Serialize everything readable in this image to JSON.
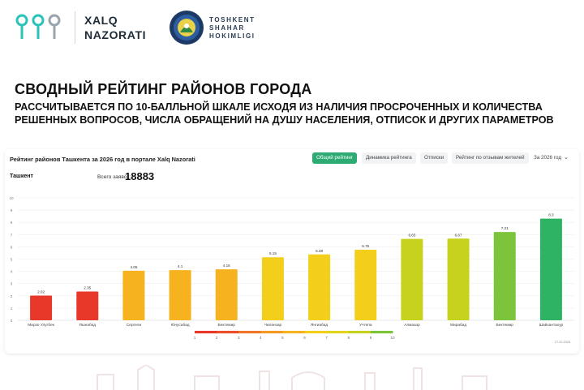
{
  "brand": {
    "line1": "XALQ",
    "line2": "NAZORATI"
  },
  "city": {
    "line1": "TOSHKENT",
    "line2": "SHAHAR",
    "line3": "HOKIMLIGI"
  },
  "heading": {
    "title": "СВОДНЫЙ РЕЙТИНГ РАЙОНОВ ГОРОДА",
    "subtitle": "РАССЧИТЫВАЕТСЯ ПО 10-БАЛЛЬНОЙ ШКАЛЕ ИСХОДЯ ИЗ НАЛИЧИЯ ПРОСРОЧЕННЫХ И  КОЛИЧЕСТВА РЕШЕННЫХ ВОПРОСОВ, ЧИСЛА ОБРАЩЕНИЙ НА ДУШУ НАСЕЛЕНИЯ, ОТПИСОК И ДРУГИХ ПАРАМЕТРОВ"
  },
  "card": {
    "title": "Рейтинг районов Ташкента за 2026 год в портале Xalq Nazorati",
    "tabs": [
      "Общий рейтинг",
      "Динамика рейтинга",
      "Отписки",
      "Рейтинг по отзывам жителей"
    ],
    "active_tab": 0,
    "year_select": "За 2026 год",
    "region": "Ташкент",
    "total_label": "Всего заявок:",
    "total_value": "18883",
    "footnote": "27.02.2026"
  },
  "colors": {
    "accent": "#2eab72",
    "scale": [
      "#e8382a",
      "#f0772a",
      "#f6b21f",
      "#f3cf1c",
      "#c6d21d",
      "#7cc43a",
      "#2eb364"
    ]
  },
  "chart_data": {
    "type": "bar",
    "categories": [
      "Мирзо Улугбек",
      "Яшнабад",
      "Сергели",
      "Юнусабад",
      "Бектемир",
      "Чиланзар",
      "Янгиабад",
      "Учтепа",
      "Алмазар",
      "Мирабад",
      "Бектемир",
      "Шайхантахур"
    ],
    "values": [
      2.02,
      2.35,
      4.05,
      4.1,
      4.16,
      5.15,
      5.38,
      5.76,
      6.65,
      6.67,
      7.21,
      8.3
    ],
    "data_labels": [
      "2.02",
      "2.35",
      "4.05",
      "4.1",
      "4.16",
      "5.15",
      "5.38",
      "5.76",
      "6.65",
      "6.67",
      "7.21",
      "8.3"
    ],
    "ylim": [
      0,
      10
    ],
    "yticks": [
      "0",
      "1",
      "2",
      "3",
      "4",
      "5",
      "6",
      "7",
      "8",
      "9",
      "10"
    ],
    "grid": true,
    "legend_scale": {
      "ticks": [
        "1",
        "2",
        "3",
        "4",
        "5",
        "6",
        "7",
        "8",
        "9",
        "10"
      ]
    },
    "title": "",
    "xlabel": "",
    "ylabel": ""
  }
}
